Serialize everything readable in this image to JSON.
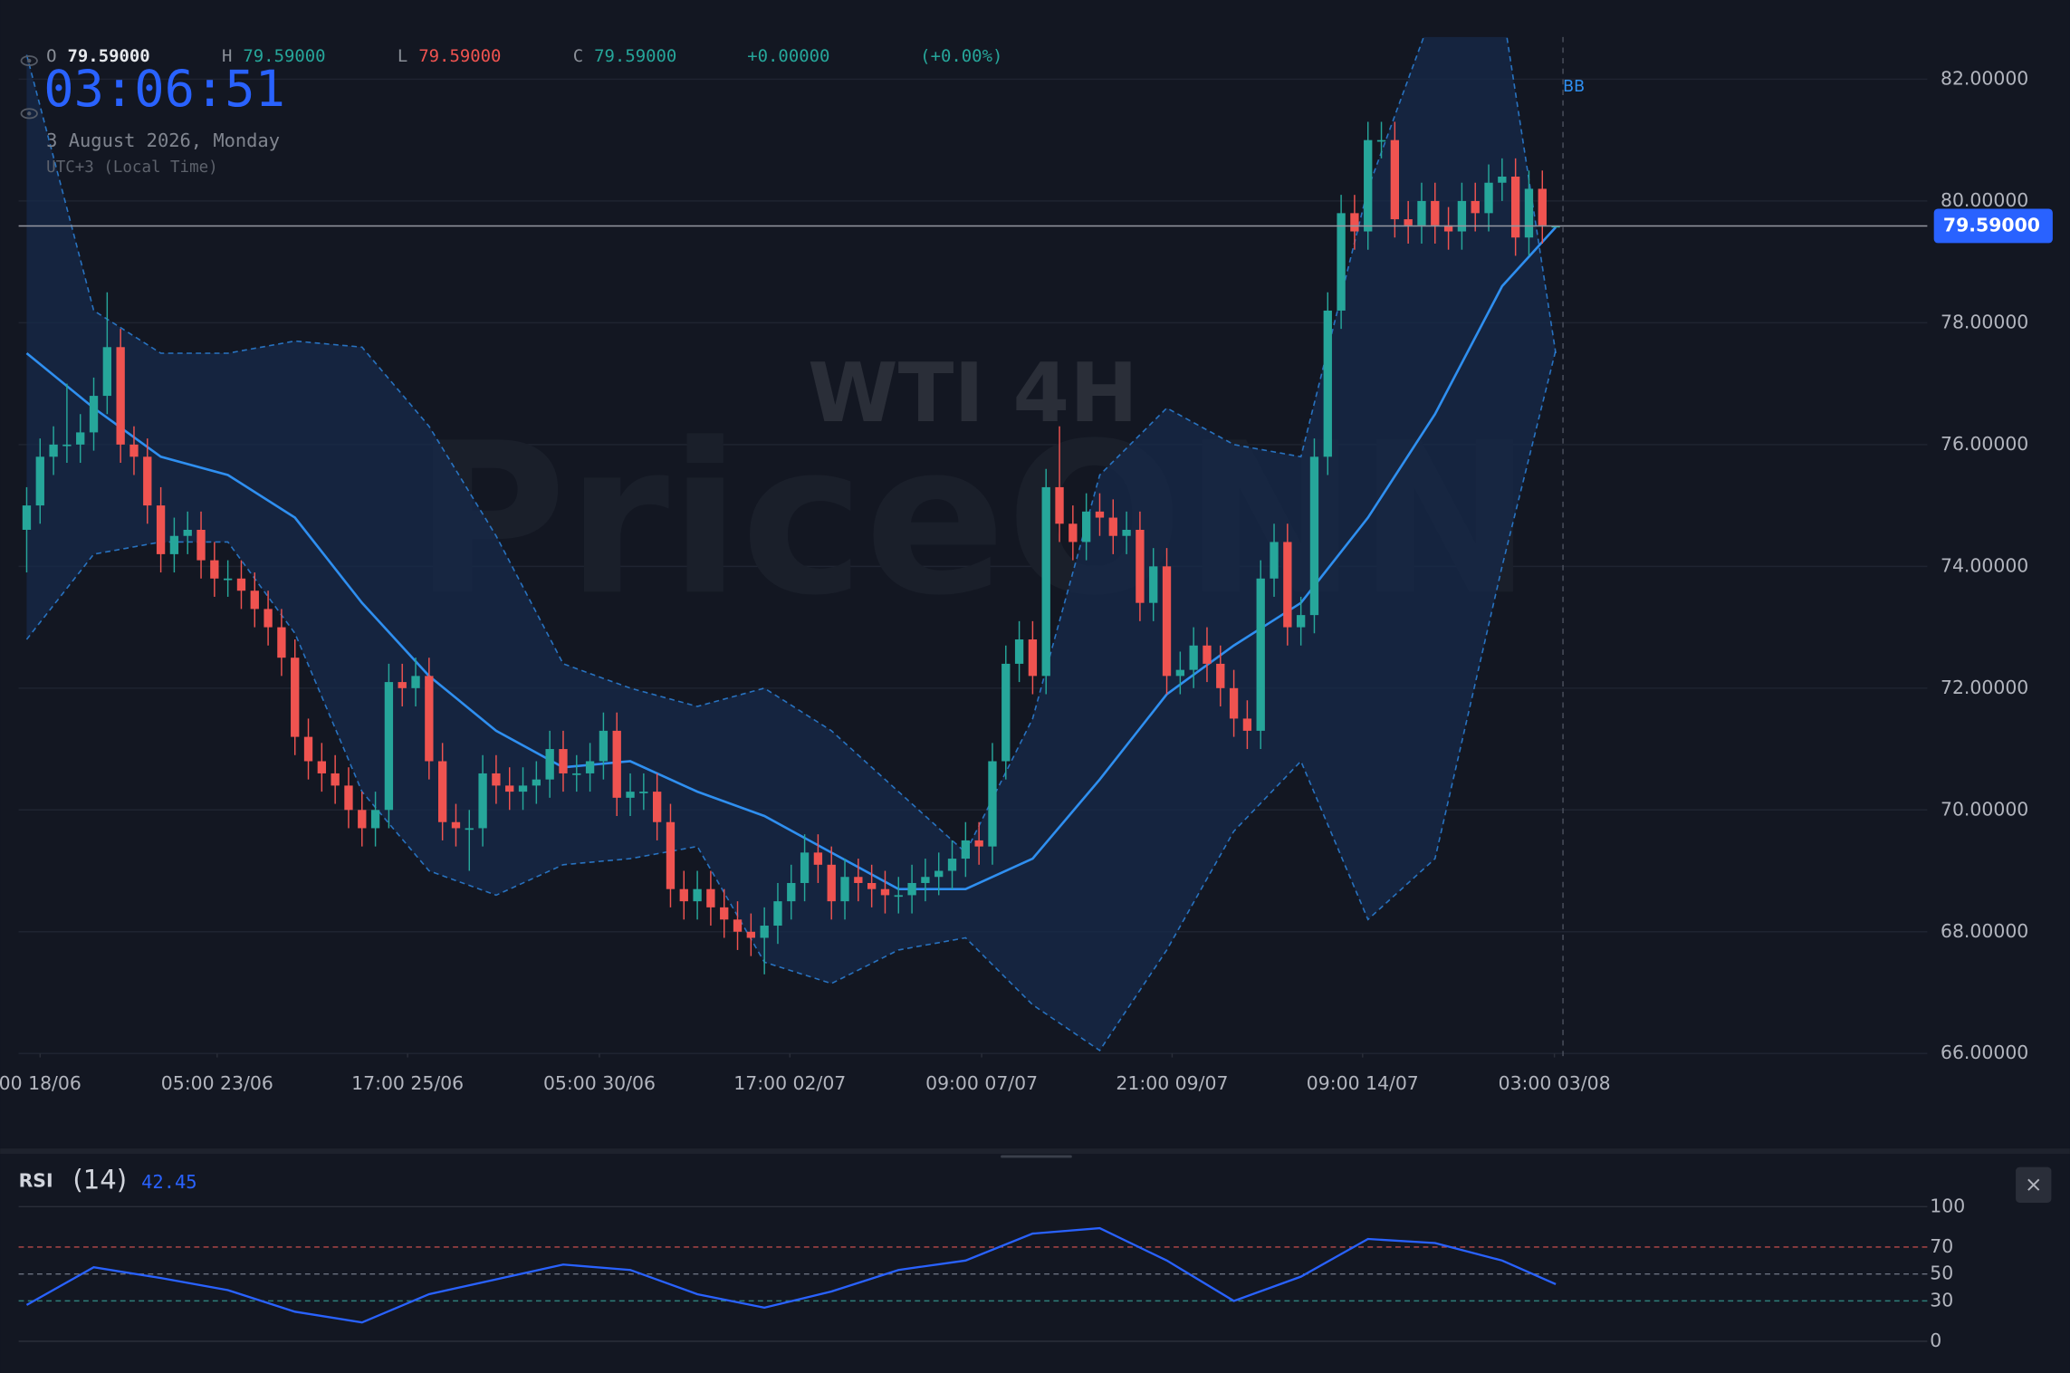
{
  "header": {
    "ohlc": [
      {
        "label": "O",
        "value": "79.59000"
      },
      {
        "label": "H",
        "value": "79.59000"
      },
      {
        "label": "L",
        "value": "79.59000"
      },
      {
        "label": "C",
        "value": "79.59000"
      }
    ],
    "change": "+0.00000",
    "change_pct": "(+0.00%)",
    "clock": "03:06:51",
    "date": "3 August 2026, Monday",
    "timezone": "UTC+3 (Local Time)"
  },
  "watermark": {
    "title": "WTI 4H",
    "brand": "PriceONN"
  },
  "close_button": "×",
  "chart_data": [
    {
      "type": "candlestick",
      "up_color": "#26a69a",
      "down_color": "#ef5350",
      "open": [
        74.6,
        75.0,
        75.8,
        76.0,
        76.0,
        76.2,
        76.8,
        77.6,
        76.0,
        75.8,
        75.0,
        74.2,
        74.5,
        74.6,
        74.1,
        73.8,
        73.8,
        73.6,
        73.3,
        73.0,
        72.5,
        71.2,
        70.8,
        70.6,
        70.4,
        70.0,
        69.7,
        70.0,
        72.1,
        72.0,
        72.2,
        70.8,
        69.8,
        69.7,
        69.7,
        70.6,
        70.4,
        70.3,
        70.4,
        70.5,
        71.0,
        70.6,
        70.6,
        70.8,
        71.3,
        70.2,
        70.3,
        70.3,
        69.8,
        68.7,
        68.5,
        68.7,
        68.4,
        68.2,
        68.0,
        67.9,
        68.1,
        68.5,
        68.8,
        69.3,
        69.1,
        68.5,
        68.9,
        68.8,
        68.7,
        68.6,
        68.6,
        68.8,
        68.9,
        69.0,
        69.2,
        69.5,
        69.4,
        70.8,
        72.4,
        72.8,
        72.2,
        75.3,
        74.7,
        74.4,
        74.9,
        74.8,
        74.5,
        74.6,
        73.4,
        74.0,
        72.2,
        72.3,
        72.7,
        72.4,
        72.0,
        71.5,
        71.3,
        73.8,
        74.4,
        73.0,
        73.2,
        75.8,
        78.2,
        79.8,
        79.5,
        81.0,
        81.0,
        79.7,
        79.6,
        80.0,
        79.6,
        79.5,
        80.0,
        79.8,
        80.3,
        80.4,
        79.4,
        80.2,
        79.59
      ],
      "high": [
        75.3,
        76.1,
        76.3,
        77.0,
        76.5,
        77.1,
        78.5,
        77.9,
        76.3,
        76.1,
        75.3,
        74.8,
        74.9,
        74.9,
        74.4,
        74.1,
        74.1,
        73.9,
        73.6,
        73.3,
        72.8,
        71.5,
        71.1,
        70.9,
        70.7,
        70.3,
        70.3,
        72.4,
        72.4,
        72.5,
        72.5,
        71.1,
        70.1,
        70.0,
        70.9,
        70.9,
        70.7,
        70.7,
        70.8,
        71.3,
        71.3,
        70.9,
        71.1,
        71.6,
        71.6,
        70.6,
        70.6,
        70.6,
        70.1,
        69.0,
        69.0,
        69.0,
        68.7,
        68.5,
        68.3,
        68.4,
        68.8,
        69.1,
        69.6,
        69.6,
        69.4,
        69.2,
        69.2,
        69.1,
        69.0,
        68.9,
        69.1,
        69.2,
        69.3,
        69.5,
        69.8,
        69.8,
        71.1,
        72.7,
        73.1,
        73.1,
        75.6,
        76.3,
        75.0,
        75.2,
        75.2,
        75.1,
        74.9,
        74.9,
        74.3,
        74.3,
        72.6,
        73.0,
        73.0,
        72.7,
        72.3,
        71.8,
        74.1,
        74.7,
        74.7,
        73.5,
        76.1,
        78.5,
        80.1,
        80.1,
        81.3,
        81.3,
        81.3,
        80.0,
        80.3,
        80.3,
        79.9,
        80.3,
        80.3,
        80.6,
        80.7,
        80.7,
        80.5,
        80.5,
        79.59
      ],
      "low": [
        73.9,
        74.7,
        75.5,
        75.7,
        75.7,
        75.9,
        76.5,
        75.7,
        75.5,
        74.7,
        73.9,
        73.9,
        74.2,
        73.8,
        73.5,
        73.5,
        73.3,
        73.0,
        72.7,
        72.2,
        70.9,
        70.5,
        70.3,
        70.1,
        69.7,
        69.4,
        69.4,
        69.7,
        71.7,
        71.7,
        70.5,
        69.5,
        69.4,
        69.0,
        69.4,
        70.1,
        70.0,
        70.0,
        70.1,
        70.2,
        70.3,
        70.3,
        70.3,
        70.5,
        69.9,
        69.9,
        70.0,
        69.5,
        68.4,
        68.2,
        68.2,
        68.1,
        67.9,
        67.7,
        67.6,
        67.3,
        67.8,
        68.2,
        68.5,
        68.8,
        68.2,
        68.2,
        68.5,
        68.4,
        68.3,
        68.3,
        68.3,
        68.5,
        68.6,
        68.7,
        68.9,
        69.1,
        69.1,
        70.5,
        72.1,
        71.9,
        71.9,
        74.4,
        74.1,
        74.1,
        74.5,
        74.2,
        74.2,
        73.1,
        73.1,
        71.9,
        71.9,
        72.0,
        72.1,
        71.7,
        71.2,
        71.0,
        71.0,
        73.5,
        72.7,
        72.7,
        72.9,
        75.5,
        77.9,
        79.2,
        79.2,
        80.7,
        79.4,
        79.3,
        79.3,
        79.3,
        79.2,
        79.2,
        79.5,
        79.5,
        80.0,
        79.1,
        79.1,
        79.3,
        79.59
      ],
      "close": [
        75.0,
        75.8,
        76.0,
        76.0,
        76.2,
        76.8,
        77.6,
        76.0,
        75.8,
        75.0,
        74.2,
        74.5,
        74.6,
        74.1,
        73.8,
        73.8,
        73.6,
        73.3,
        73.0,
        72.5,
        71.2,
        70.8,
        70.6,
        70.4,
        70.0,
        69.7,
        70.0,
        72.1,
        72.0,
        72.2,
        70.8,
        69.8,
        69.7,
        69.7,
        70.6,
        70.4,
        70.3,
        70.4,
        70.5,
        71.0,
        70.6,
        70.6,
        70.8,
        71.3,
        70.2,
        70.3,
        70.3,
        69.8,
        68.7,
        68.5,
        68.7,
        68.4,
        68.2,
        68.0,
        67.9,
        68.1,
        68.5,
        68.8,
        69.3,
        69.1,
        68.5,
        68.9,
        68.8,
        68.7,
        68.6,
        68.6,
        68.8,
        68.9,
        69.0,
        69.2,
        69.5,
        69.4,
        70.8,
        72.4,
        72.8,
        72.2,
        75.3,
        74.7,
        74.4,
        74.9,
        74.8,
        74.5,
        74.6,
        73.4,
        74.0,
        72.2,
        72.3,
        72.7,
        72.4,
        72.0,
        71.5,
        71.3,
        73.8,
        74.4,
        73.0,
        73.2,
        75.8,
        78.2,
        79.8,
        79.5,
        81.0,
        81.0,
        79.7,
        79.6,
        80.0,
        79.6,
        79.5,
        80.0,
        79.8,
        80.3,
        80.4,
        79.4,
        80.2,
        79.6,
        79.59
      ],
      "bb_label": "BB",
      "bb_color": "#2f8ff0",
      "bb_x": [
        0,
        5,
        10,
        15,
        20,
        25,
        30,
        35,
        40,
        45,
        50,
        55,
        60,
        65,
        70,
        75,
        80,
        85,
        90,
        95,
        100,
        105,
        110,
        114
      ],
      "bb_upper": [
        82.4,
        78.2,
        77.5,
        77.5,
        77.7,
        77.6,
        76.3,
        74.5,
        72.4,
        72.0,
        71.7,
        72.0,
        71.3,
        70.3,
        69.3,
        71.5,
        75.5,
        76.6,
        76.0,
        75.8,
        80.2,
        83.2,
        83.2,
        77.5
      ],
      "bb_middle": [
        77.5,
        76.6,
        75.8,
        75.5,
        74.8,
        73.4,
        72.2,
        71.3,
        70.7,
        70.8,
        70.3,
        69.9,
        69.3,
        68.7,
        68.7,
        69.2,
        70.5,
        71.9,
        72.7,
        73.4,
        74.8,
        76.5,
        78.6,
        79.57
      ],
      "bb_lower": [
        72.8,
        74.2,
        74.4,
        74.4,
        72.9,
        70.3,
        69.0,
        68.6,
        69.1,
        69.2,
        69.4,
        67.5,
        67.15,
        67.7,
        67.9,
        66.8,
        66.05,
        67.7,
        69.65,
        70.8,
        68.2,
        69.2,
        74.0,
        77.55
      ],
      "last_price": {
        "value": 79.59,
        "label": "79.59000"
      },
      "xlim": [
        -0.6,
        141.7
      ],
      "xticks": [
        {
          "value": 1.0,
          "label": "00 18/06"
        },
        {
          "value": 14.2,
          "label": "05:00 23/06"
        },
        {
          "value": 28.4,
          "label": "17:00 25/06"
        },
        {
          "value": 42.7,
          "label": "05:00 30/06"
        },
        {
          "value": 56.9,
          "label": "17:00 02/07"
        },
        {
          "value": 71.2,
          "label": "09:00 07/07"
        },
        {
          "value": 85.4,
          "label": "21:00 09/07"
        },
        {
          "value": 99.6,
          "label": "09:00 14/07"
        },
        {
          "value": 113.9,
          "label": "03:00 03/08"
        }
      ],
      "ylim": [
        66,
        82.65
      ],
      "yticks": [
        {
          "value": 66,
          "label": "66.00000"
        },
        {
          "value": 68,
          "label": "68.00000"
        },
        {
          "value": 70,
          "label": "70.00000"
        },
        {
          "value": 72,
          "label": "72.00000"
        },
        {
          "value": 74,
          "label": "74.00000"
        },
        {
          "value": 76,
          "label": "76.00000"
        },
        {
          "value": 78,
          "label": "78.00000"
        },
        {
          "value": 80,
          "label": "80.00000"
        },
        {
          "value": 82,
          "label": "82.00000"
        }
      ],
      "grid": true
    },
    {
      "type": "line",
      "title": "RSI",
      "subtitle": "(14)",
      "color": "#2962ff",
      "x": [
        0,
        5,
        10,
        15,
        20,
        25,
        30,
        35,
        40,
        45,
        50,
        55,
        60,
        65,
        70,
        75,
        80,
        85,
        90,
        95,
        100,
        105,
        110,
        114
      ],
      "values": [
        27,
        55,
        47,
        38,
        22,
        14,
        35,
        46,
        57,
        53,
        35,
        25,
        37,
        53,
        60,
        80,
        84,
        60,
        30,
        48,
        76,
        73,
        60,
        42.45
      ],
      "levels": [
        {
          "value": 70,
          "color": "#b84a4a"
        },
        {
          "value": 50,
          "color": "#6b7280"
        },
        {
          "value": 30,
          "color": "#2f7f7a"
        }
      ],
      "xlim": [
        -0.6,
        141.7
      ],
      "ylim": [
        0,
        100
      ],
      "yticks": [
        0,
        30,
        50,
        70,
        100
      ],
      "grid": true
    }
  ]
}
